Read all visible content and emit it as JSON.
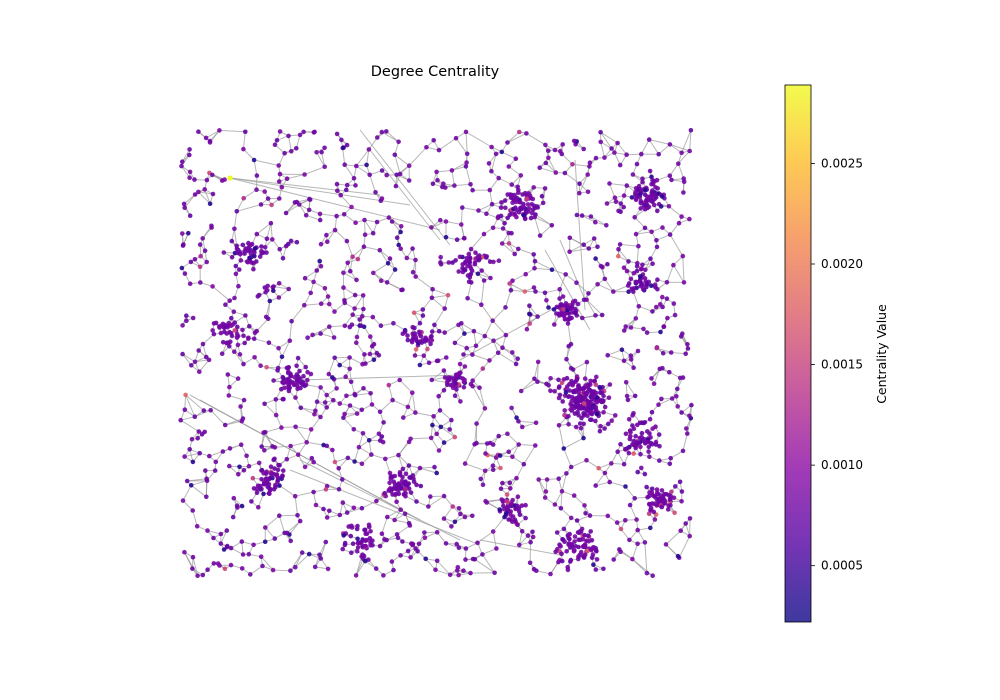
{
  "figure": {
    "title": "Degree Centrality"
  },
  "colorbar": {
    "label": "Centrality Value",
    "min": 0.00022,
    "max": 0.00289,
    "ticks": [
      {
        "value": 0.0005,
        "label": "0.0005"
      },
      {
        "value": 0.001,
        "label": "0.0010"
      },
      {
        "value": 0.0015,
        "label": "0.0015"
      },
      {
        "value": 0.002,
        "label": "0.0020"
      },
      {
        "value": 0.0025,
        "label": "0.0025"
      }
    ],
    "colormap": "plasma",
    "stops": [
      "#0d0887",
      "#5302a3",
      "#8b0aa5",
      "#b83289",
      "#db5c68",
      "#f48849",
      "#febd2a",
      "#f0f921"
    ],
    "alpha": 0.8
  },
  "network": {
    "node_color_mode": "degree centrality",
    "edge_color": "#999999",
    "typical_centrality": 0.0008,
    "high_centrality": 0.0029
  }
}
